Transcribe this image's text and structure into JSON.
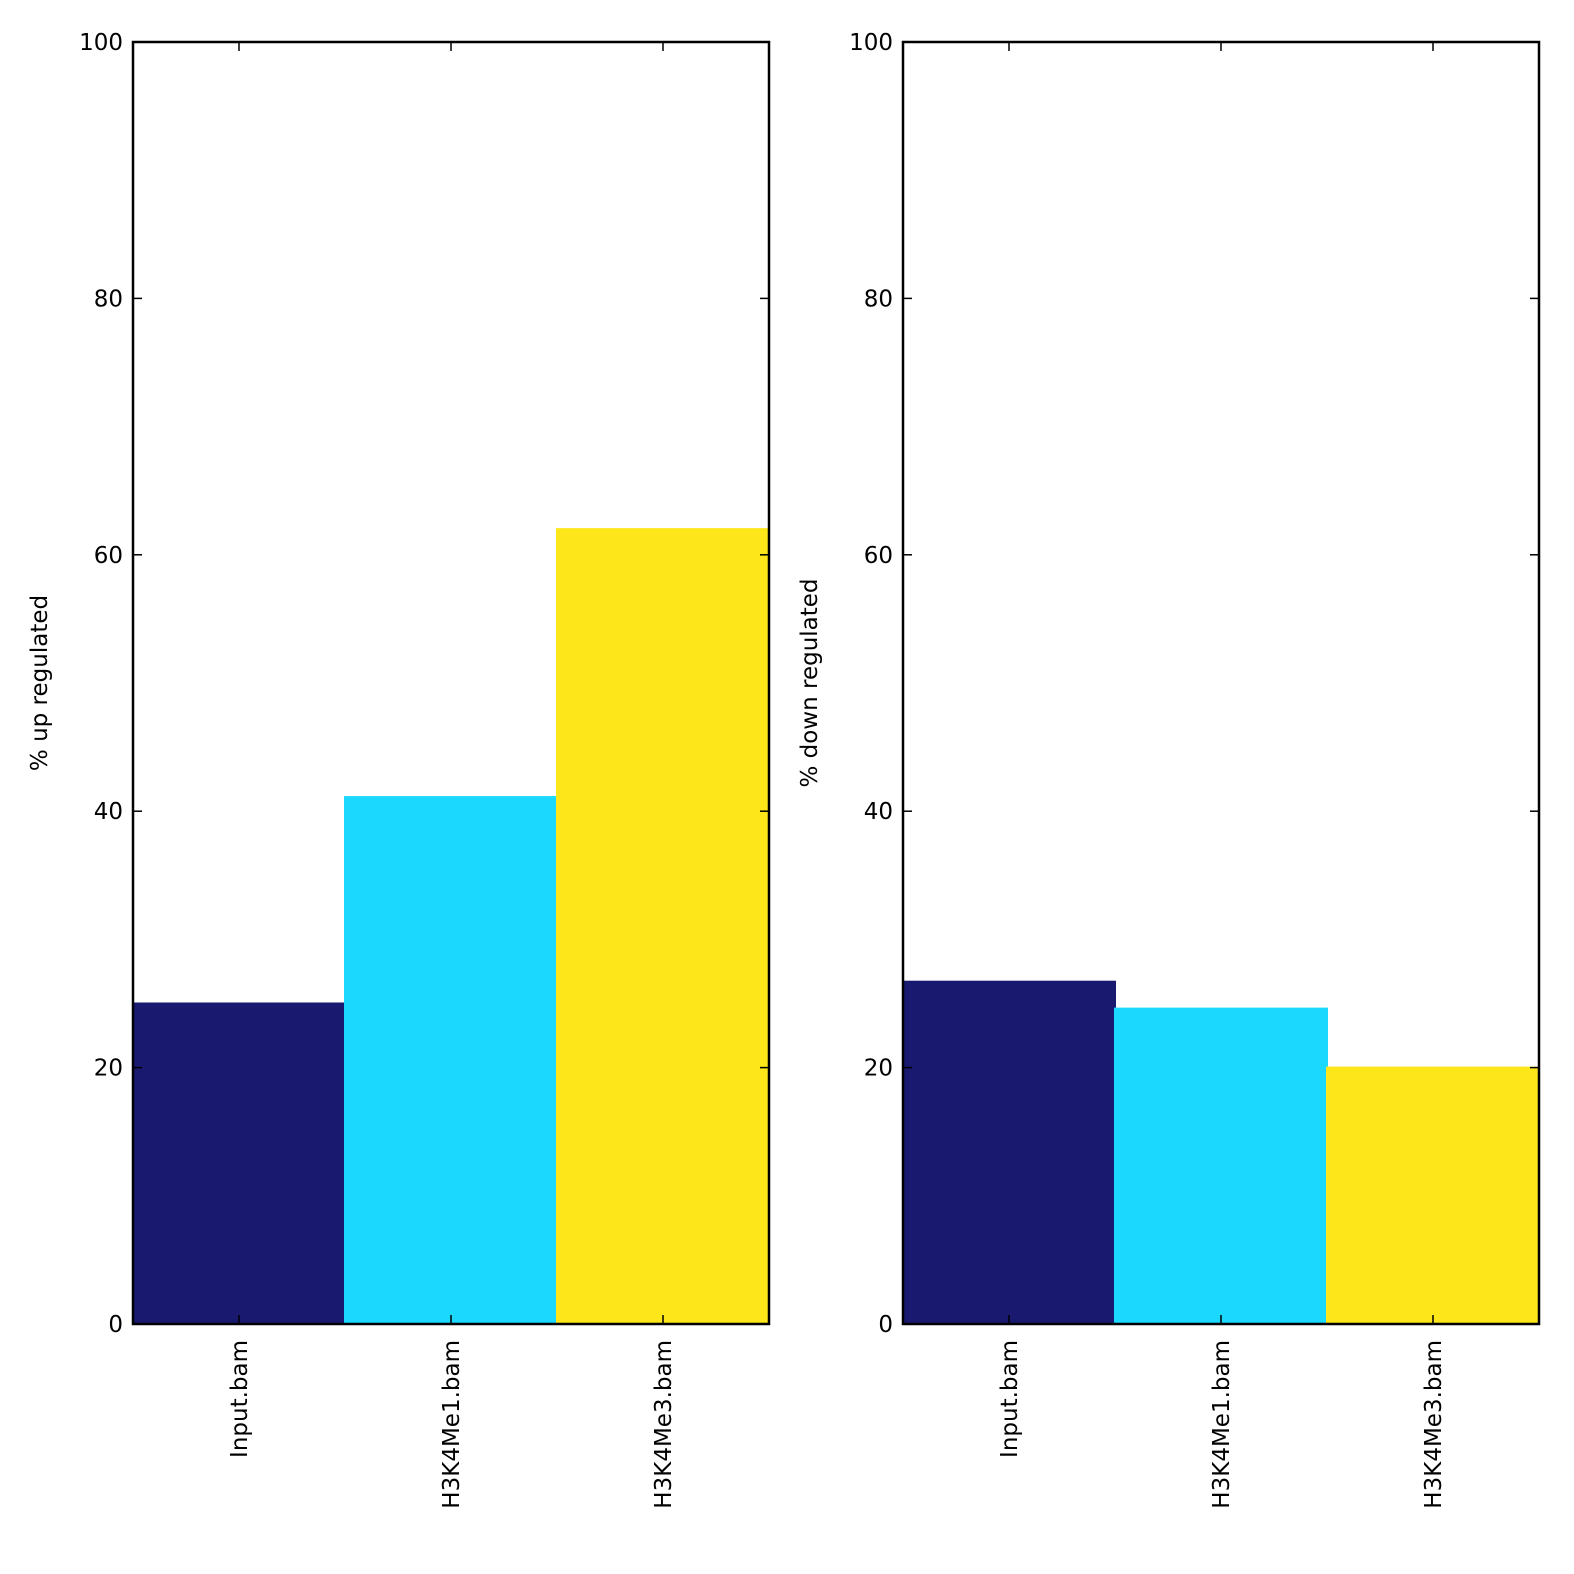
{
  "chart_data": [
    {
      "type": "bar",
      "title": "",
      "xlabel": "",
      "ylabel": "% up regulated",
      "categories": [
        "Input.bam",
        "H3K4Me1.bam",
        "H3K4Me3.bam"
      ],
      "values": [
        25,
        41.1,
        62
      ],
      "colors": [
        "#191970",
        "#1ad8fe",
        "#fde619"
      ],
      "ylim": [
        0,
        100
      ],
      "yticks": [
        0,
        20,
        40,
        60,
        80,
        100
      ],
      "grid": false
    },
    {
      "type": "bar",
      "title": "",
      "xlabel": "",
      "ylabel": "% down regulated",
      "categories": [
        "Input.bam",
        "H3K4Me1.bam",
        "H3K4Me3.bam"
      ],
      "values": [
        26.7,
        24.6,
        20
      ],
      "colors": [
        "#191970",
        "#1ad8fe",
        "#fde619"
      ],
      "ylim": [
        0,
        100
      ],
      "yticks": [
        0,
        20,
        40,
        60,
        80,
        100
      ],
      "grid": false
    }
  ]
}
